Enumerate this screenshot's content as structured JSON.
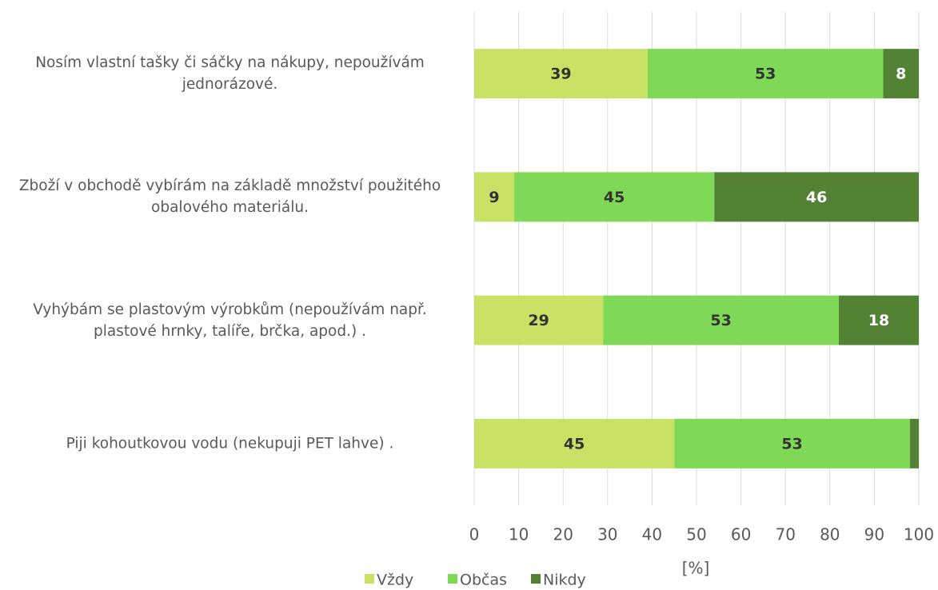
{
  "chart_data": {
    "type": "stacked-bar-horizontal",
    "categories": [
      "Nosím vlastní tašky či sáčky na nákupy, nepoužívám jednorázové.",
      "Zboží v obchodě vybírám na základě množství použitého obalového materiálu.",
      "Vyhýbám se plastovým výrobkům (nepoužívám např. plastové hrnky, talíře, brčka, apod.) .",
      "Piji kohoutkovou vodu (nekupuji PET lahve) ."
    ],
    "series": [
      {
        "name": "Vždy",
        "color": "#c9e265",
        "values": [
          39,
          9,
          29,
          45
        ]
      },
      {
        "name": "Občas",
        "color": "#7fd957",
        "values": [
          53,
          45,
          53,
          53
        ]
      },
      {
        "name": "Nikdy",
        "color": "#548235",
        "values": [
          8,
          46,
          18,
          2
        ],
        "value_labels": [
          "8",
          "46",
          "18",
          null
        ]
      }
    ],
    "xlim": [
      0,
      100
    ],
    "xticks": [
      0,
      10,
      20,
      30,
      40,
      50,
      60,
      70,
      80,
      90,
      100
    ],
    "x_label": "[%]",
    "grid": true,
    "legend": "bottom"
  }
}
